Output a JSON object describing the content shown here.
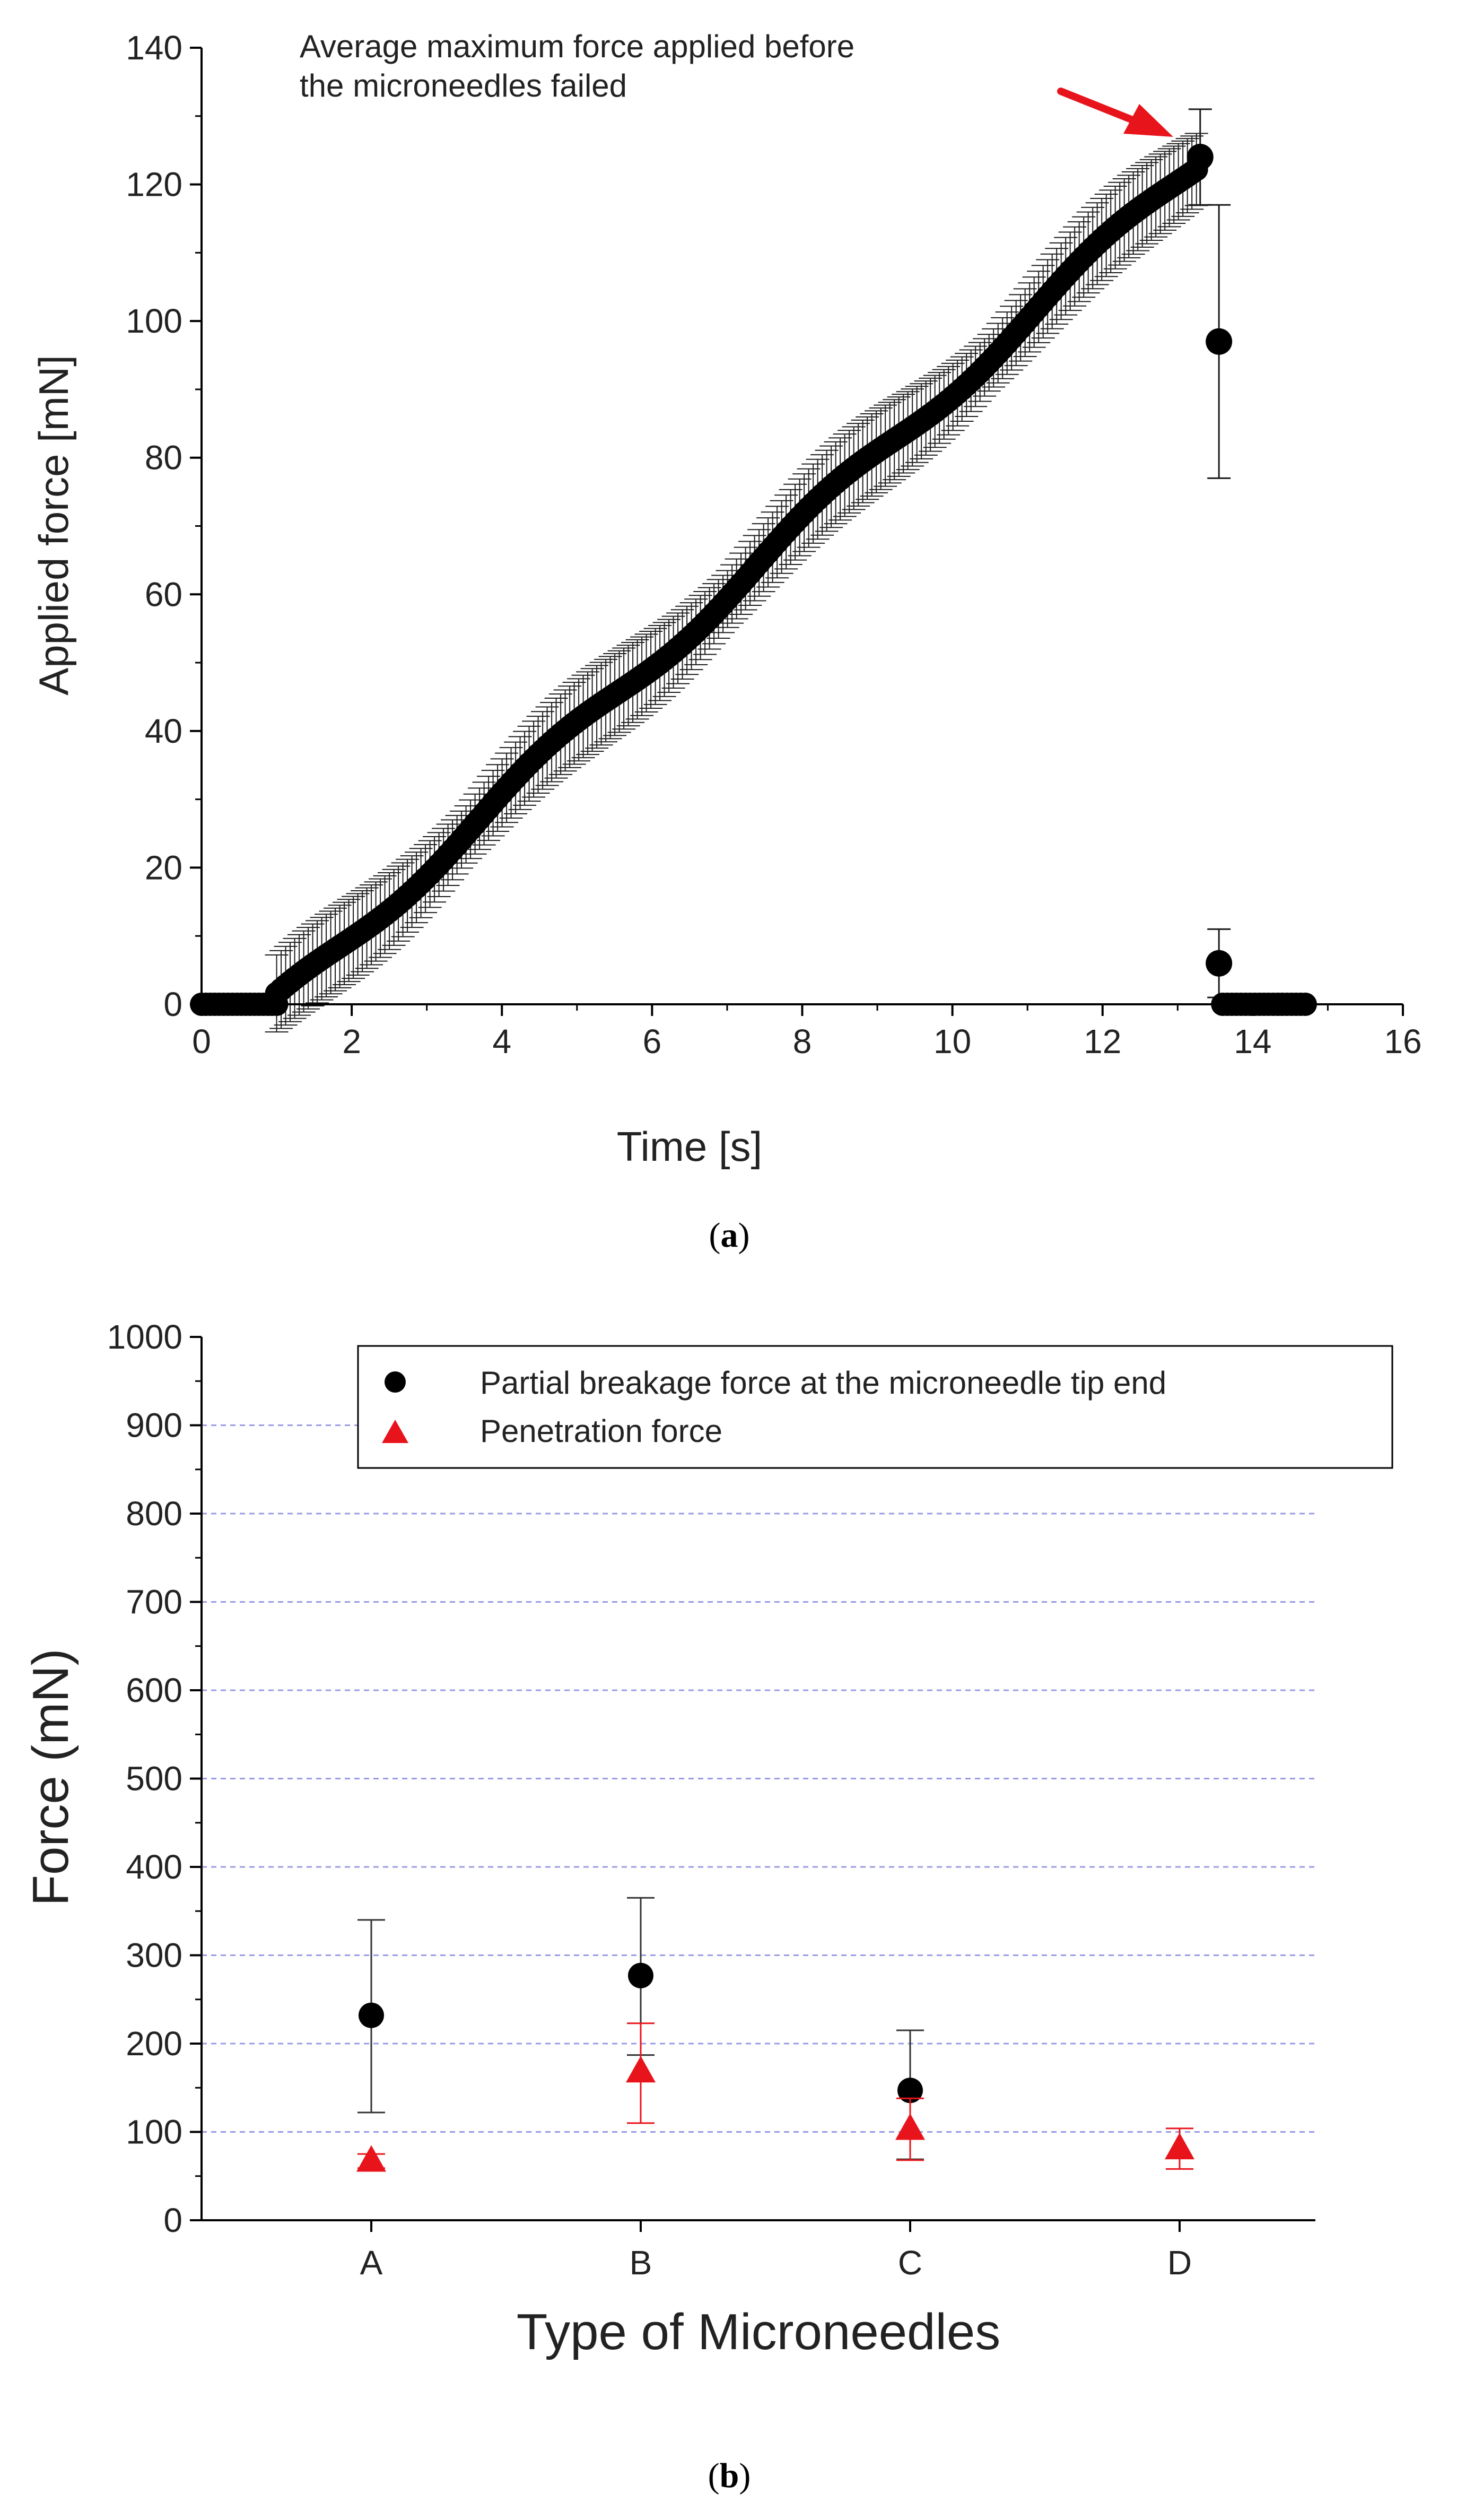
{
  "chart_data": [
    {
      "type": "scatter",
      "panel_label": "a",
      "xlabel": "Time [s]",
      "ylabel": "Applied force [mN]",
      "xlim": [
        0,
        16
      ],
      "ylim": [
        0,
        140
      ],
      "xticks": [
        "0",
        "2",
        "4",
        "6",
        "8",
        "10",
        "12",
        "14",
        "16"
      ],
      "yticks": [
        "0",
        "20",
        "40",
        "60",
        "80",
        "100",
        "120",
        "140"
      ],
      "grid": false,
      "marker_color": "#000000",
      "annotation": {
        "lines": [
          "Average maximum force applied before",
          "the microneedles failed"
        ],
        "arrow_color": "#e8141b",
        "points_to": [
          13.25,
          124
        ]
      },
      "series": [
        {
          "segments": [
            {
              "x_start": 0,
              "x_end": 1.0,
              "y_start": 0,
              "y_end": 0,
              "error": 0,
              "step": 0.06
            },
            {
              "x_start": 1.0,
              "x_end": 13.25,
              "y_start": 0,
              "y_end": 123,
              "error": 5.5,
              "step": 0.06
            },
            {
              "x_start": 13.6,
              "x_end": 14.7,
              "y_start": 0,
              "y_end": 0,
              "error": 0,
              "step": 0.06
            }
          ],
          "points": [
            {
              "x": 13.3,
              "y": 124,
              "err": 7
            },
            {
              "x": 13.55,
              "y": 97,
              "err": 20
            },
            {
              "x": 13.55,
              "y": 6,
              "err": 5
            }
          ]
        }
      ]
    },
    {
      "type": "scatter",
      "panel_label": "b",
      "xlabel": "Type of Microneedles",
      "ylabel": "Force (mN)",
      "categories": [
        "A",
        "B",
        "C",
        "D"
      ],
      "ylim": [
        0,
        1000
      ],
      "yticks": [
        "0",
        "100",
        "200",
        "300",
        "400",
        "500",
        "600",
        "700",
        "800",
        "900",
        "1000"
      ],
      "grid": true,
      "grid_color": "#9a9ae6",
      "legend_position": "top-right",
      "series": [
        {
          "name": "Partial breakage force at the microneedle tip end",
          "marker": "circle",
          "color": "#000000",
          "values": [
            232,
            277,
            147,
            null
          ],
          "err_low": [
            110,
            90,
            78,
            null
          ],
          "err_high": [
            108,
            88,
            68,
            null
          ]
        },
        {
          "name": "Penetration force",
          "marker": "triangle",
          "color": "#e8141b",
          "values": [
            67,
            168,
            103,
            81
          ],
          "err_low": [
            8,
            58,
            35,
            23
          ],
          "err_high": [
            8,
            55,
            35,
            23
          ]
        }
      ]
    }
  ]
}
